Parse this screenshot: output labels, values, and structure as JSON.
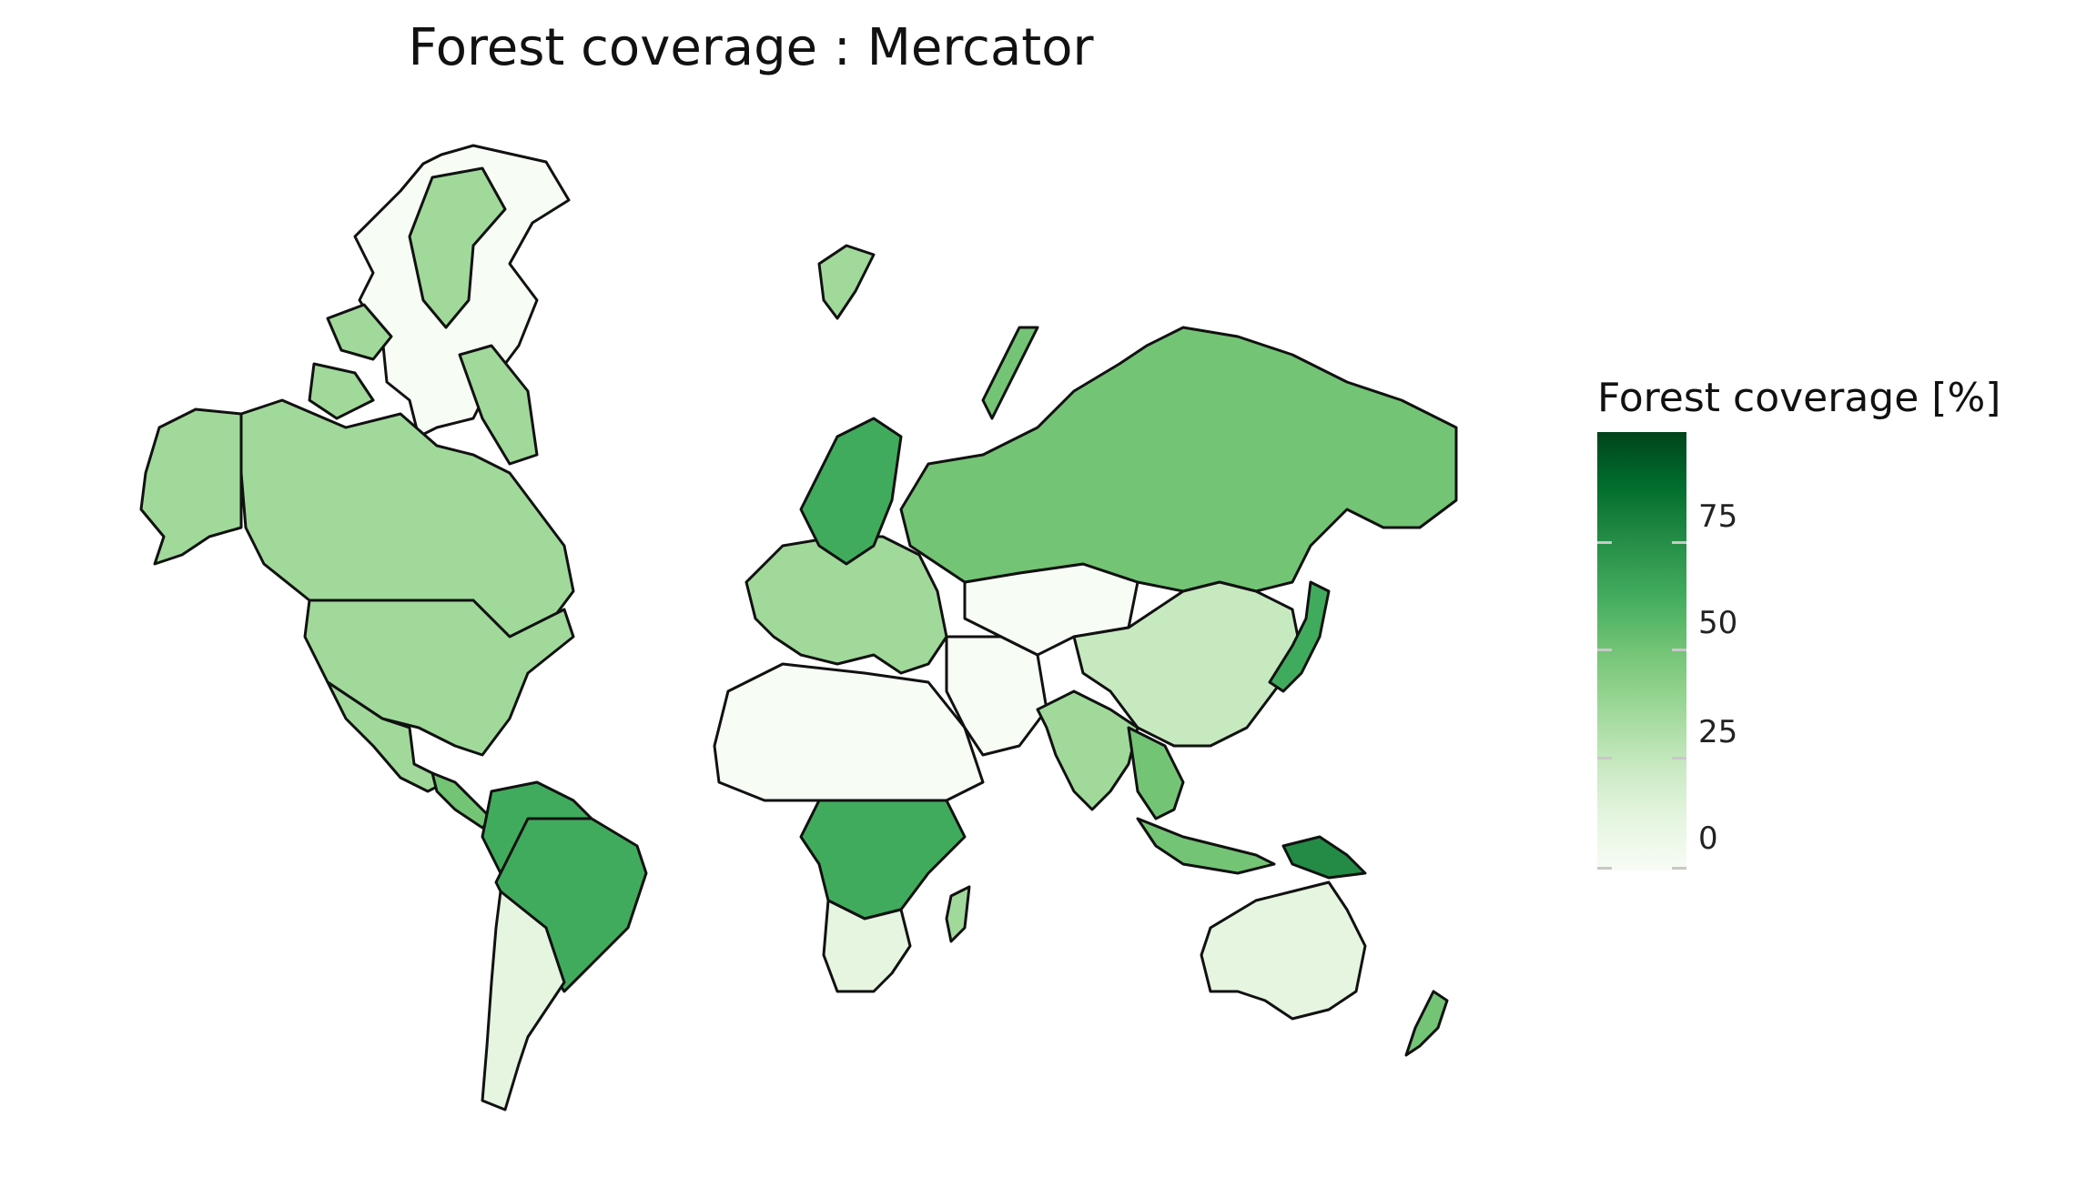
{
  "title": "Forest coverage : Mercator",
  "legend": {
    "title": "Forest coverage [%]",
    "ticks": [
      "0",
      "25",
      "50",
      "75"
    ],
    "colors": [
      "#f7fcf5",
      "#e5f5e0",
      "#c7e9c0",
      "#a1d99b",
      "#74c476",
      "#41ab5d",
      "#238b45",
      "#006d2c",
      "#00441b"
    ]
  },
  "regions": [
    {
      "name": "Greenland",
      "color": "#f7fcf5"
    },
    {
      "name": "Canada",
      "color": "#a1d99b"
    },
    {
      "name": "Alaska",
      "color": "#a1d99b"
    },
    {
      "name": "United States",
      "color": "#a1d99b"
    },
    {
      "name": "Mexico",
      "color": "#a1d99b"
    },
    {
      "name": "Central America",
      "color": "#74c476"
    },
    {
      "name": "Brazil",
      "color": "#41ab5d"
    },
    {
      "name": "Northern South America",
      "color": "#41ab5d"
    },
    {
      "name": "Argentina and Chile",
      "color": "#e5f5e0"
    },
    {
      "name": "Europe",
      "color": "#a1d99b"
    },
    {
      "name": "Scandinavia",
      "color": "#41ab5d"
    },
    {
      "name": "North Africa",
      "color": "#f7fcf5"
    },
    {
      "name": "Central Africa",
      "color": "#41ab5d"
    },
    {
      "name": "Southern Africa",
      "color": "#e5f5e0"
    },
    {
      "name": "Russia",
      "color": "#74c476"
    },
    {
      "name": "Middle East",
      "color": "#f7fcf5"
    },
    {
      "name": "Central Asia",
      "color": "#f7fcf5"
    },
    {
      "name": "China",
      "color": "#c7e9c0"
    },
    {
      "name": "India",
      "color": "#a1d99b"
    },
    {
      "name": "Southeast Asia",
      "color": "#74c476"
    },
    {
      "name": "Japan",
      "color": "#41ab5d"
    },
    {
      "name": "Australia",
      "color": "#e5f5e0"
    },
    {
      "name": "New Zealand",
      "color": "#74c476"
    },
    {
      "name": "Madagascar",
      "color": "#a1d99b"
    },
    {
      "name": "Svalbard",
      "color": "#a1d99b"
    },
    {
      "name": "Novaya Zemlya",
      "color": "#74c476"
    },
    {
      "name": "New Guinea",
      "color": "#238b45"
    }
  ]
}
